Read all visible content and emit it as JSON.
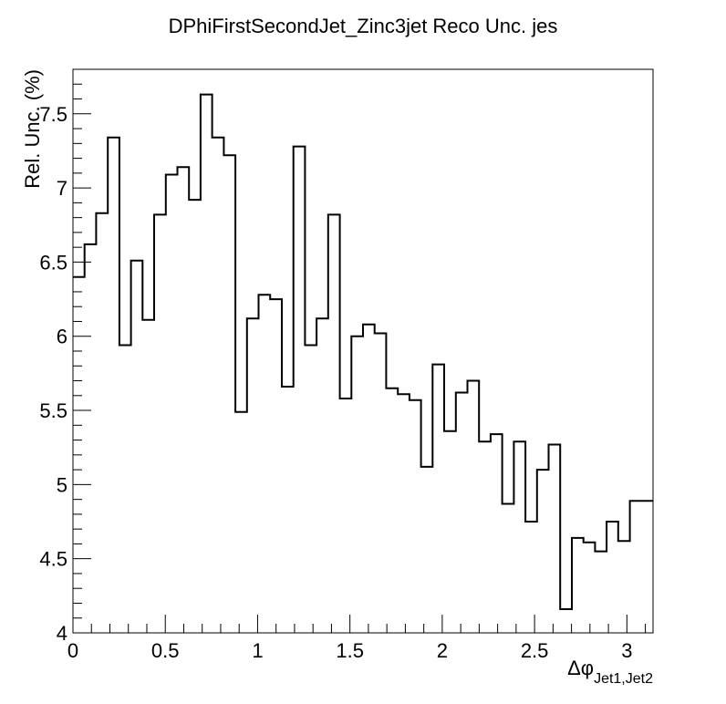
{
  "chart_data": {
    "type": "histogram",
    "title": "DPhiFirstSecondJet_Zinc3jet Reco Unc. jes",
    "xlabel_main": "Δφ",
    "xlabel_sub": "Jet1,Jet2",
    "ylabel": "Rel. Unc. (%)",
    "xlim": [
      0,
      3.1416
    ],
    "ylim": [
      4,
      7.8
    ],
    "xticks": [
      0,
      0.5,
      1,
      1.5,
      2,
      2.5,
      3
    ],
    "xtick_labels": [
      "0",
      "0.5",
      "1",
      "1.5",
      "2",
      "2.5",
      "3"
    ],
    "yticks": [
      4,
      4.5,
      5,
      5.5,
      6,
      6.5,
      7,
      7.5
    ],
    "ytick_labels": [
      "4",
      "4.5",
      "5",
      "5.5",
      "6",
      "6.5",
      "7",
      "7.5"
    ],
    "bin_width": 0.0628,
    "values": [
      6.4,
      6.62,
      6.83,
      7.34,
      5.94,
      6.51,
      6.11,
      6.82,
      7.09,
      7.14,
      6.92,
      7.63,
      7.34,
      7.22,
      5.49,
      6.12,
      6.28,
      6.25,
      5.66,
      7.28,
      5.94,
      6.12,
      6.82,
      5.58,
      6.0,
      6.08,
      6.02,
      5.65,
      5.61,
      5.57,
      5.12,
      5.81,
      5.36,
      5.62,
      5.7,
      5.29,
      5.34,
      4.87,
      5.29,
      4.75,
      5.1,
      5.27,
      4.16,
      4.64,
      4.61,
      4.55,
      4.75,
      4.62,
      4.89,
      4.89
    ]
  }
}
